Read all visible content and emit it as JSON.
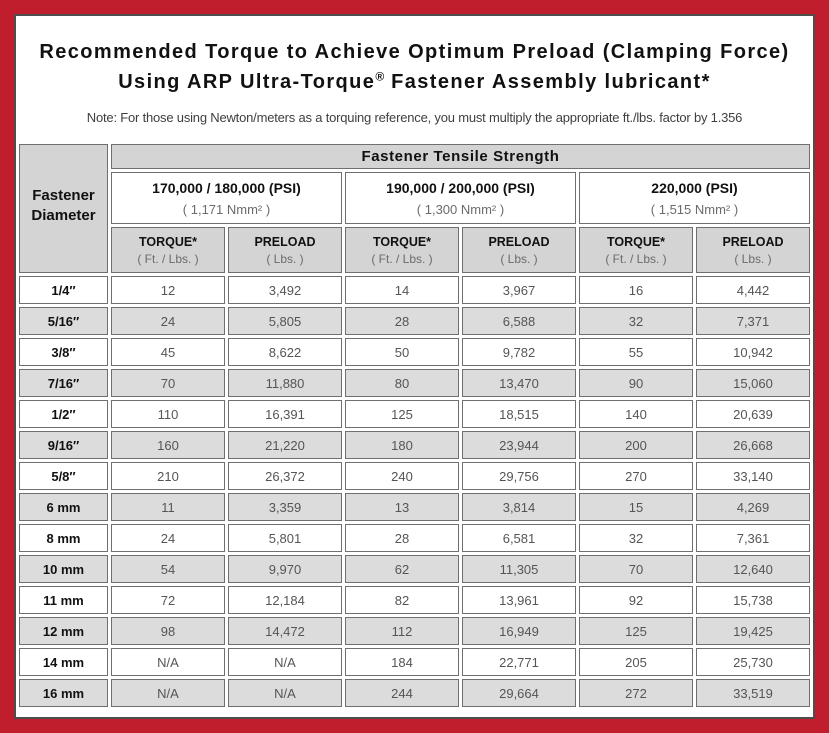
{
  "frame": {
    "border_red": "#c01e2c",
    "inner_border": "#4d4d4d",
    "header_gray": "#d4d4d4",
    "alt_row_gray": "#dcdcdc"
  },
  "header": {
    "title_line1": "Recommended Torque to Achieve Optimum Preload (Clamping Force)",
    "title_line2_pre": "Using ARP Ultra-Torque",
    "title_line2_reg_mark": "®",
    "title_line2_post": " Fastener Assembly lubricant*",
    "note": "Note: For those using Newton/meters as a torquing reference, you must multiply the appropriate ft./lbs. factor by 1.356"
  },
  "table": {
    "tensile_strength_header": "Fastener Tensile Strength",
    "row_header": {
      "line1": "Fastener",
      "line2": "Diameter"
    },
    "strength_groups": [
      {
        "psi": "170,000 / 180,000 (PSI)",
        "nmm": "( 1,171 Nmm² )"
      },
      {
        "psi": "190,000 / 200,000 (PSI)",
        "nmm": "( 1,300 Nmm² )"
      },
      {
        "psi": "220,000 (PSI)",
        "nmm": "( 1,515 Nmm² )"
      }
    ],
    "sub_headers": {
      "torque_label": "TORQUE*",
      "torque_unit": "( Ft. / Lbs. )",
      "preload_label": "PRELOAD",
      "preload_unit": "( Lbs. )"
    },
    "rows": [
      {
        "diameter": "1/4″",
        "values": [
          "12",
          "3,492",
          "14",
          "3,967",
          "16",
          "4,442"
        ]
      },
      {
        "diameter": "5/16″",
        "values": [
          "24",
          "5,805",
          "28",
          "6,588",
          "32",
          "7,371"
        ]
      },
      {
        "diameter": "3/8″",
        "values": [
          "45",
          "8,622",
          "50",
          "9,782",
          "55",
          "10,942"
        ]
      },
      {
        "diameter": "7/16″",
        "values": [
          "70",
          "11,880",
          "80",
          "13,470",
          "90",
          "15,060"
        ]
      },
      {
        "diameter": "1/2″",
        "values": [
          "110",
          "16,391",
          "125",
          "18,515",
          "140",
          "20,639"
        ]
      },
      {
        "diameter": "9/16″",
        "values": [
          "160",
          "21,220",
          "180",
          "23,944",
          "200",
          "26,668"
        ]
      },
      {
        "diameter": "5/8″",
        "values": [
          "210",
          "26,372",
          "240",
          "29,756",
          "270",
          "33,140"
        ]
      },
      {
        "diameter": "6 mm",
        "values": [
          "11",
          "3,359",
          "13",
          "3,814",
          "15",
          "4,269"
        ]
      },
      {
        "diameter": "8 mm",
        "values": [
          "24",
          "5,801",
          "28",
          "6,581",
          "32",
          "7,361"
        ]
      },
      {
        "diameter": "10 mm",
        "values": [
          "54",
          "9,970",
          "62",
          "11,305",
          "70",
          "12,640"
        ]
      },
      {
        "diameter": "11 mm",
        "values": [
          "72",
          "12,184",
          "82",
          "13,961",
          "92",
          "15,738"
        ]
      },
      {
        "diameter": "12 mm",
        "values": [
          "98",
          "14,472",
          "112",
          "16,949",
          "125",
          "19,425"
        ]
      },
      {
        "diameter": "14 mm",
        "values": [
          "N/A",
          "N/A",
          "184",
          "22,771",
          "205",
          "25,730"
        ]
      },
      {
        "diameter": "16 mm",
        "values": [
          "N/A",
          "N/A",
          "244",
          "29,664",
          "272",
          "33,519"
        ]
      }
    ]
  }
}
